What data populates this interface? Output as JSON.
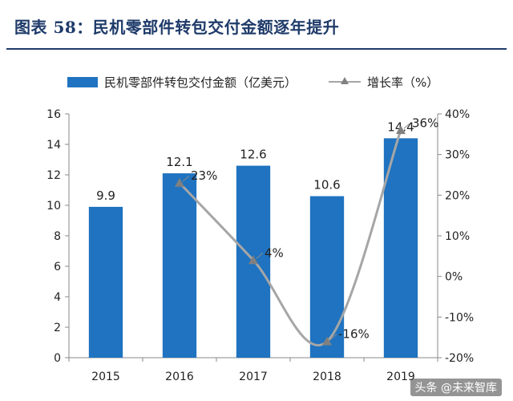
{
  "title": "图表 58：民机零部件转包交付金额逐年提升",
  "legend": {
    "bar_label": "民机零部件转包交付金额（亿美元）",
    "line_label": "增长率（%）"
  },
  "watermark": "头条 @未来智库",
  "colors": {
    "bar": "#1f73c0",
    "line": "#a6a6a6",
    "marker": "#808080",
    "title": "#1f3b6a"
  },
  "chart_data": {
    "type": "bar",
    "categories": [
      "2015",
      "2016",
      "2017",
      "2018",
      "2019"
    ],
    "series": [
      {
        "name": "民机零部件转包交付金额（亿美元）",
        "type": "bar",
        "axis": "left",
        "values": [
          9.9,
          12.1,
          12.6,
          10.6,
          14.4
        ],
        "labels": [
          "9.9",
          "12.1",
          "12.6",
          "10.6",
          "14.4"
        ]
      },
      {
        "name": "增长率（%）",
        "type": "line",
        "axis": "right",
        "smooth": true,
        "values": [
          null,
          23,
          4,
          -16,
          36
        ],
        "labels": [
          "",
          "23%",
          "4%",
          "-16%",
          "36%"
        ]
      }
    ],
    "left_axis": {
      "ylim": [
        0,
        16
      ],
      "ticks": [
        "0",
        "2",
        "4",
        "6",
        "8",
        "10",
        "12",
        "14",
        "16"
      ]
    },
    "right_axis": {
      "ylim": [
        -20,
        40
      ],
      "ticks": [
        "-20%",
        "-10%",
        "0%",
        "10%",
        "20%",
        "30%",
        "40%"
      ]
    },
    "grid": false,
    "legend_position": "top"
  }
}
